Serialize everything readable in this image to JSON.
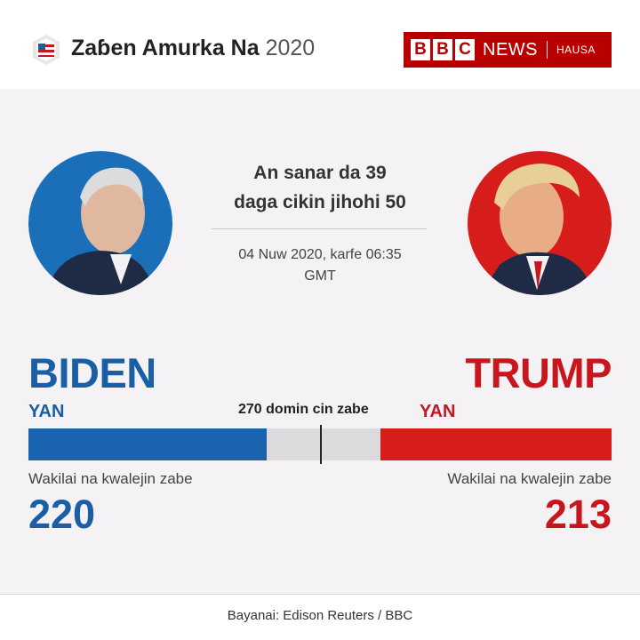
{
  "header": {
    "title": "Zaɓen Amurka Na",
    "year": "2020",
    "logo_icon": "us-flag-badge-icon"
  },
  "brand": {
    "letters": [
      "B",
      "B",
      "C"
    ],
    "news": "NEWS",
    "language": "HAUSA",
    "color": "#b80000"
  },
  "headline": {
    "line1": "An sanar da 39",
    "line2": "daga cikin jihohi 50"
  },
  "timestamp": {
    "line1": "04 Nuw 2020, karfe 06:35",
    "line2": "GMT"
  },
  "threshold": {
    "label": "270 domin cin zabe",
    "value": 270
  },
  "total_electoral_votes": 538,
  "candidates": {
    "biden": {
      "name": "BIDEN",
      "status": "YAN",
      "votes_label": "Wakilai na kwalejin zabe",
      "votes": "220",
      "votes_value": 220,
      "color": "#1a5fa6"
    },
    "trump": {
      "name": "TRUMP",
      "status": "YAN",
      "votes_label": "Wakilai na kwalejin zabe",
      "votes": "213",
      "votes_value": 213,
      "color": "#c8161d"
    }
  },
  "footer": {
    "source": "Bayanai: Edison Reuters / BBC"
  }
}
